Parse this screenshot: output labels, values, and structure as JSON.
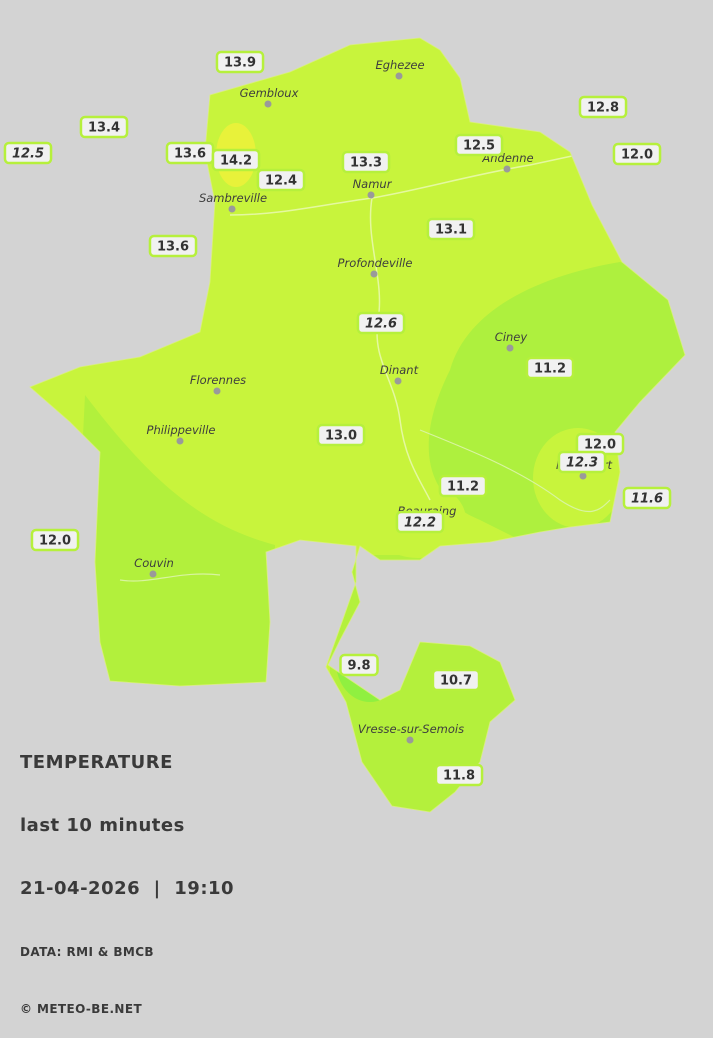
{
  "cities": [
    {
      "name": "Eghezee"
    },
    {
      "name": "Gembloux"
    },
    {
      "name": "Andenne"
    },
    {
      "name": "Namur"
    },
    {
      "name": "Sambreville"
    },
    {
      "name": "Profondeville"
    },
    {
      "name": "Ciney"
    },
    {
      "name": "Dinant"
    },
    {
      "name": "Florennes"
    },
    {
      "name": "Philippeville"
    },
    {
      "name": "Beauraing"
    },
    {
      "name": "Rochefort"
    },
    {
      "name": "Couvin"
    },
    {
      "name": "Vresse-sur-Semois"
    }
  ],
  "stations": [
    {
      "value": "13.9"
    },
    {
      "value": "13.4"
    },
    {
      "value": "12.5",
      "italic": true
    },
    {
      "value": "13.6"
    },
    {
      "value": "14.2"
    },
    {
      "value": "12.4"
    },
    {
      "value": "13.3"
    },
    {
      "value": "12.5"
    },
    {
      "value": "12.8"
    },
    {
      "value": "12.0"
    },
    {
      "value": "13.6"
    },
    {
      "value": "13.1"
    },
    {
      "value": "12.6",
      "italic": true
    },
    {
      "value": "11.2"
    },
    {
      "value": "13.0"
    },
    {
      "value": "12.0"
    },
    {
      "value": "12.3",
      "italic": true
    },
    {
      "value": "11.2"
    },
    {
      "value": "11.6",
      "italic": true
    },
    {
      "value": "12.2",
      "italic": true
    },
    {
      "value": "12.0"
    },
    {
      "value": "9.8"
    },
    {
      "value": "10.7"
    },
    {
      "value": "11.8"
    }
  ],
  "legend": {
    "title": "TEMPERATURE",
    "subtitle": "last 10 minutes",
    "datetime": "21-04-2026  |  19:10",
    "source": "DATA: RMI & BMCB",
    "copyright": "© METEO-BE.NET"
  }
}
